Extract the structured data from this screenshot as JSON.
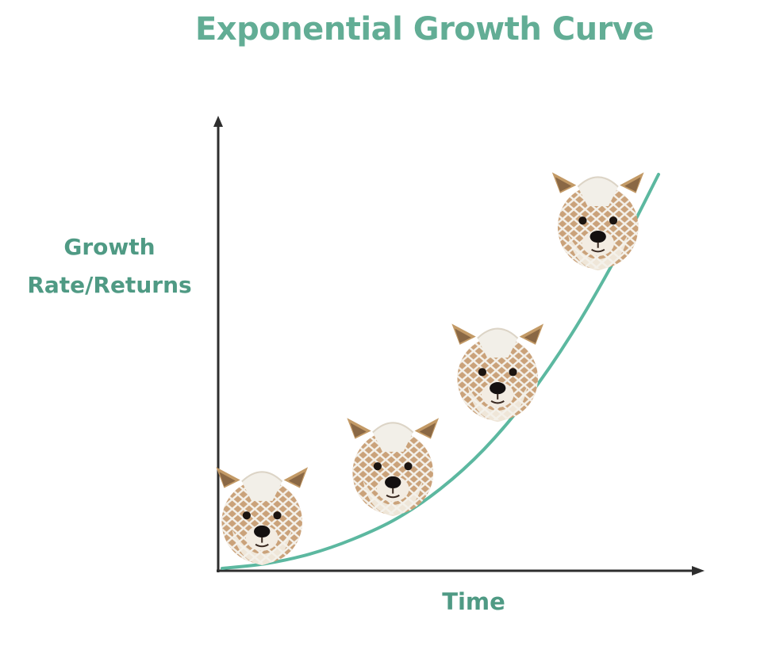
{
  "chart_data": {
    "type": "line",
    "title": "Exponential Growth Curve",
    "xlabel": "Time",
    "ylabel": "Growth Rate/Returns",
    "grid": false,
    "legend": "none",
    "series": [
      {
        "curve": "exponential",
        "color": "#5cb8a0",
        "x": [
          0,
          1,
          2,
          3,
          4,
          5,
          6,
          7,
          8,
          9,
          10
        ],
        "y": [
          0.4,
          1.6,
          4.0,
          7.8,
          13.0,
          20.5,
          30.5,
          43.5,
          59.5,
          78.5,
          100
        ]
      }
    ],
    "xlim": [
      0,
      10
    ],
    "ylim": [
      0,
      100
    ],
    "markers": [
      {
        "icon": "dog-head-in-netting-icon",
        "x": 1.2
      },
      {
        "icon": "dog-head-in-netting-icon",
        "x": 4.2
      },
      {
        "icon": "dog-head-in-netting-icon",
        "x": 6.6
      },
      {
        "icon": "dog-head-in-netting-icon",
        "x": 8.9
      }
    ],
    "colors": {
      "title": "#62ad95",
      "axis_labels": "#4f9a84",
      "axes": "#2e2e2e"
    }
  }
}
